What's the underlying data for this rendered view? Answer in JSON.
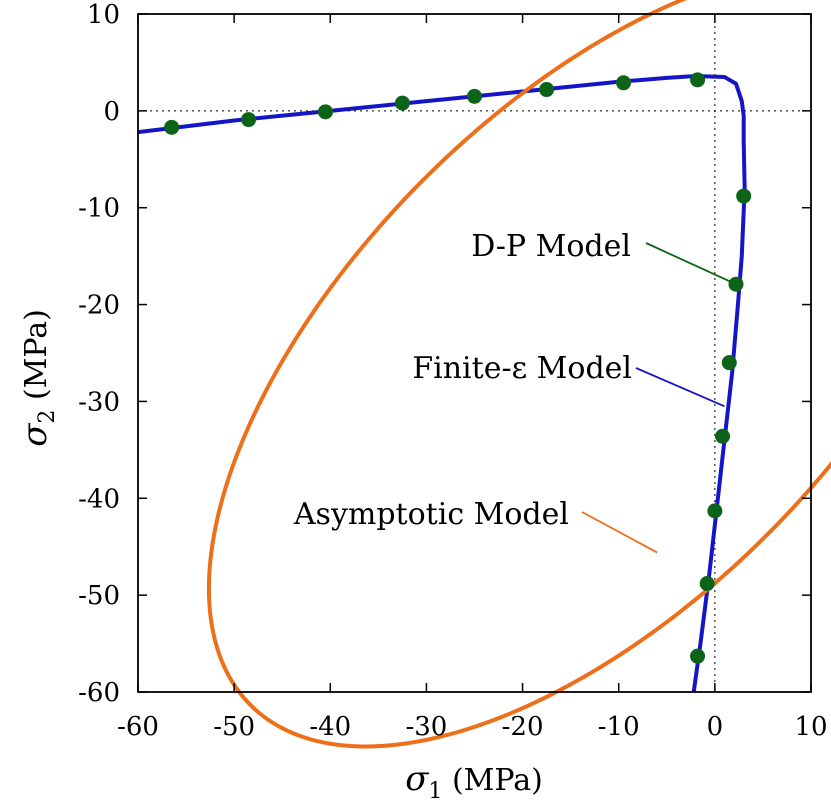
{
  "chart_data": {
    "type": "line",
    "xlabel_symbol": "σ",
    "xlabel_sub": "1",
    "xlabel_unit": " (MPa)",
    "ylabel_symbol": "σ",
    "ylabel_sub": "2",
    "ylabel_unit": " (MPa)",
    "xlim": [
      -60,
      10
    ],
    "ylim": [
      -60,
      10
    ],
    "xticks": [
      "-60",
      "-50",
      "-40",
      "-30",
      "-20",
      "-10",
      "0",
      "10"
    ],
    "yticks": [
      "10",
      "0",
      "-10",
      "-20",
      "-30",
      "-40",
      "-50",
      "-60"
    ],
    "grid": false,
    "reference_lines": {
      "x": 0,
      "y": 0
    },
    "series": [
      {
        "name": "Finite-ε Model",
        "color": "#1515c8",
        "type": "line",
        "x": [
          -60,
          -50,
          -40,
          -30,
          -20,
          -10,
          -5,
          -2,
          1,
          2.2,
          2.8,
          3.0,
          3.0,
          3.1,
          2.8,
          2.4,
          1.8,
          1.0,
          0.2,
          -0.6,
          -1.5,
          -2.2
        ],
        "y": [
          -2.2,
          -1.0,
          0.0,
          1.0,
          2.0,
          3.0,
          3.4,
          3.6,
          3.5,
          2.8,
          1.0,
          -0.5,
          -3.2,
          -8,
          -15,
          -20,
          -27,
          -34,
          -41,
          -48,
          -55,
          -60
        ]
      },
      {
        "name": "D-P Model",
        "color": "#0d6318",
        "type": "scatter",
        "x": [
          -56.5,
          -48.5,
          -40.5,
          -32.5,
          -25,
          -17.5,
          -9.5,
          -1.8,
          3,
          2.2,
          1.5,
          0.8,
          0,
          -0.8,
          -1.8
        ],
        "y": [
          -1.7,
          -0.9,
          -0.1,
          0.8,
          1.5,
          2.2,
          2.9,
          3.2,
          -8.8,
          -17.9,
          -26,
          -33.6,
          -41.3,
          -48.8,
          -56.3
        ]
      },
      {
        "name": "Asymptotic Model",
        "color": "#ee6f1a",
        "type": "line",
        "shape": "ellipse",
        "center": [
          -12.4,
          -25.4
        ],
        "radius_major": 50.8,
        "radius_minor": 25.6,
        "angle_deg": 45
      }
    ],
    "annotations": [
      {
        "text": "D-P Model",
        "series": "D-P Model",
        "target": [
          2.2,
          -17.9
        ]
      },
      {
        "text": "Finite-ε Model",
        "series": "Finite-ε Model",
        "target": [
          1.0,
          -30.5
        ]
      },
      {
        "text": "Asymptotic Model",
        "series": "Asymptotic Model",
        "target": [
          -6,
          -45.6
        ]
      }
    ]
  }
}
